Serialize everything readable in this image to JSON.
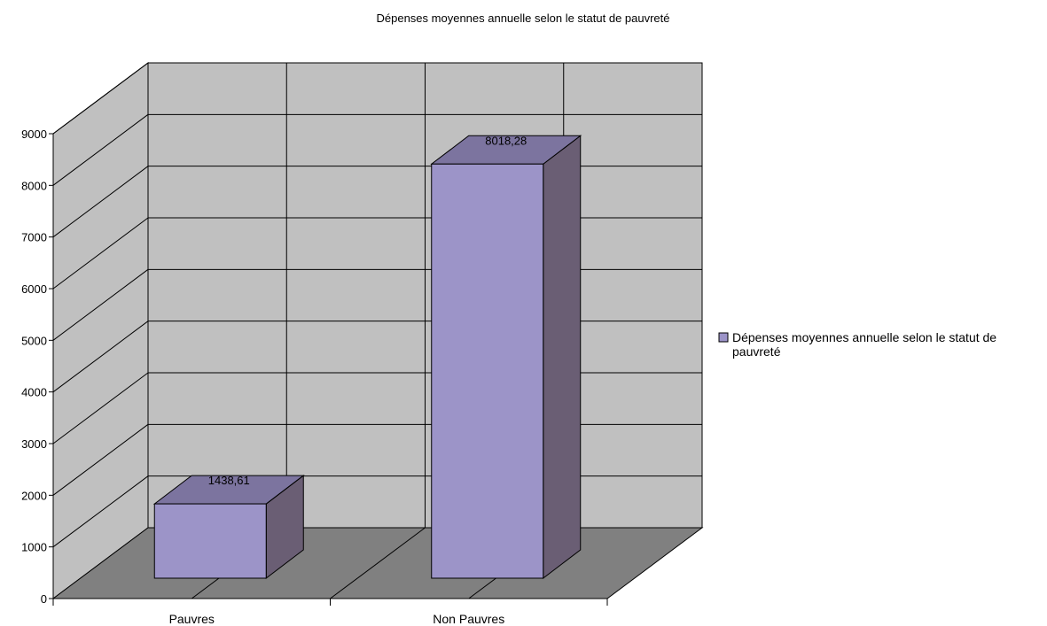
{
  "chart_data": {
    "type": "bar",
    "title": "Dépenses moyennes annuelle selon le statut de pauvreté",
    "categories": [
      "Pauvres",
      "Non Pauvres"
    ],
    "series": [
      {
        "name": "Dépenses moyennes annuelle selon le statut de pauvreté",
        "values": [
          1438.61,
          8018.28
        ],
        "value_labels": [
          "1438,61",
          "8018,28"
        ],
        "color": "#9c94c8"
      }
    ],
    "yticks": [
      "0",
      "1000",
      "2000",
      "3000",
      "4000",
      "5000",
      "6000",
      "7000",
      "8000",
      "9000"
    ],
    "ylim": [
      0,
      9000
    ],
    "xlabel": "",
    "ylabel": "",
    "grid": true,
    "legend_position": "right",
    "legend_lines": [
      "Dépenses moyennes annuelle selon le statut de",
      "pauvreté"
    ],
    "colors": {
      "wall": "#c0c0c0",
      "floor": "#808080",
      "bar_front": "#9c94c8",
      "bar_top": "#7c749f",
      "bar_side": "#6a5e74"
    }
  }
}
